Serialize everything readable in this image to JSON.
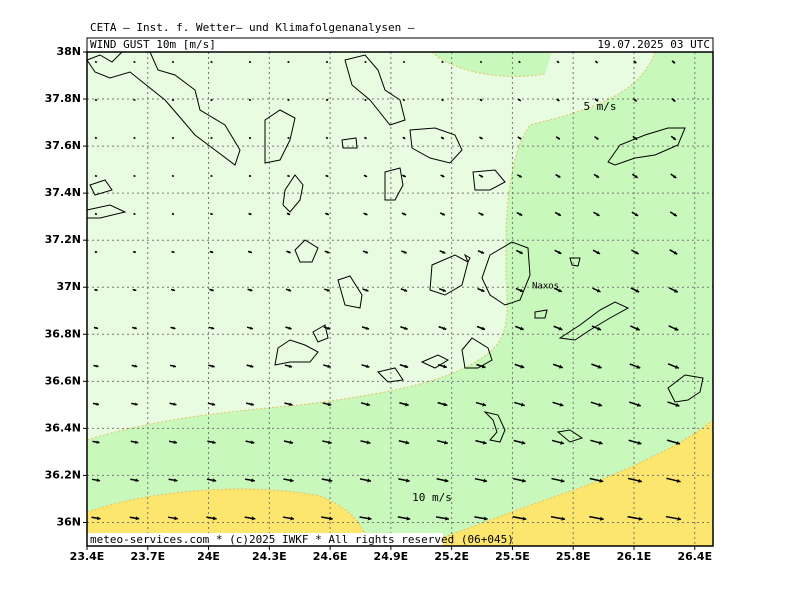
{
  "header": {
    "title": "CETA — Inst. f. Wetter— und Klimafolgenanalysen —",
    "field": "WIND GUST 10m [m/s]",
    "time": "19.07.2025 03 UTC",
    "footer": "meteo-services.com * (c)2025 IWKF * All rights reserved (06+045)"
  },
  "map": {
    "xlim": [
      23.4,
      26.49
    ],
    "ylim": [
      35.9,
      38
    ],
    "lat_ticks": [
      {
        "value": 38,
        "label": "38N"
      },
      {
        "value": 37.8,
        "label": "37.8N"
      },
      {
        "value": 37.6,
        "label": "37.6N"
      },
      {
        "value": 37.4,
        "label": "37.4N"
      },
      {
        "value": 37.2,
        "label": "37.2N"
      },
      {
        "value": 37,
        "label": "37N"
      },
      {
        "value": 36.8,
        "label": "36.8N"
      },
      {
        "value": 36.6,
        "label": "36.6N"
      },
      {
        "value": 36.4,
        "label": "36.4N"
      },
      {
        "value": 36.2,
        "label": "36.2N"
      },
      {
        "value": 36,
        "label": "36N"
      }
    ],
    "lon_ticks": [
      {
        "value": 23.4,
        "label": "23.4E"
      },
      {
        "value": 23.7,
        "label": "23.7E"
      },
      {
        "value": 24,
        "label": "24E"
      },
      {
        "value": 24.3,
        "label": "24.3E"
      },
      {
        "value": 24.6,
        "label": "24.6E"
      },
      {
        "value": 24.9,
        "label": "24.9E"
      },
      {
        "value": 25.2,
        "label": "25.2E"
      },
      {
        "value": 25.5,
        "label": "25.5E"
      },
      {
        "value": 25.8,
        "label": "25.8E"
      },
      {
        "value": 26.1,
        "label": "26.1E"
      },
      {
        "value": 26.4,
        "label": "26.4E"
      }
    ],
    "contour_labels": [
      "5 m/s",
      "10 m/s"
    ],
    "place_label": "Naxos"
  }
}
